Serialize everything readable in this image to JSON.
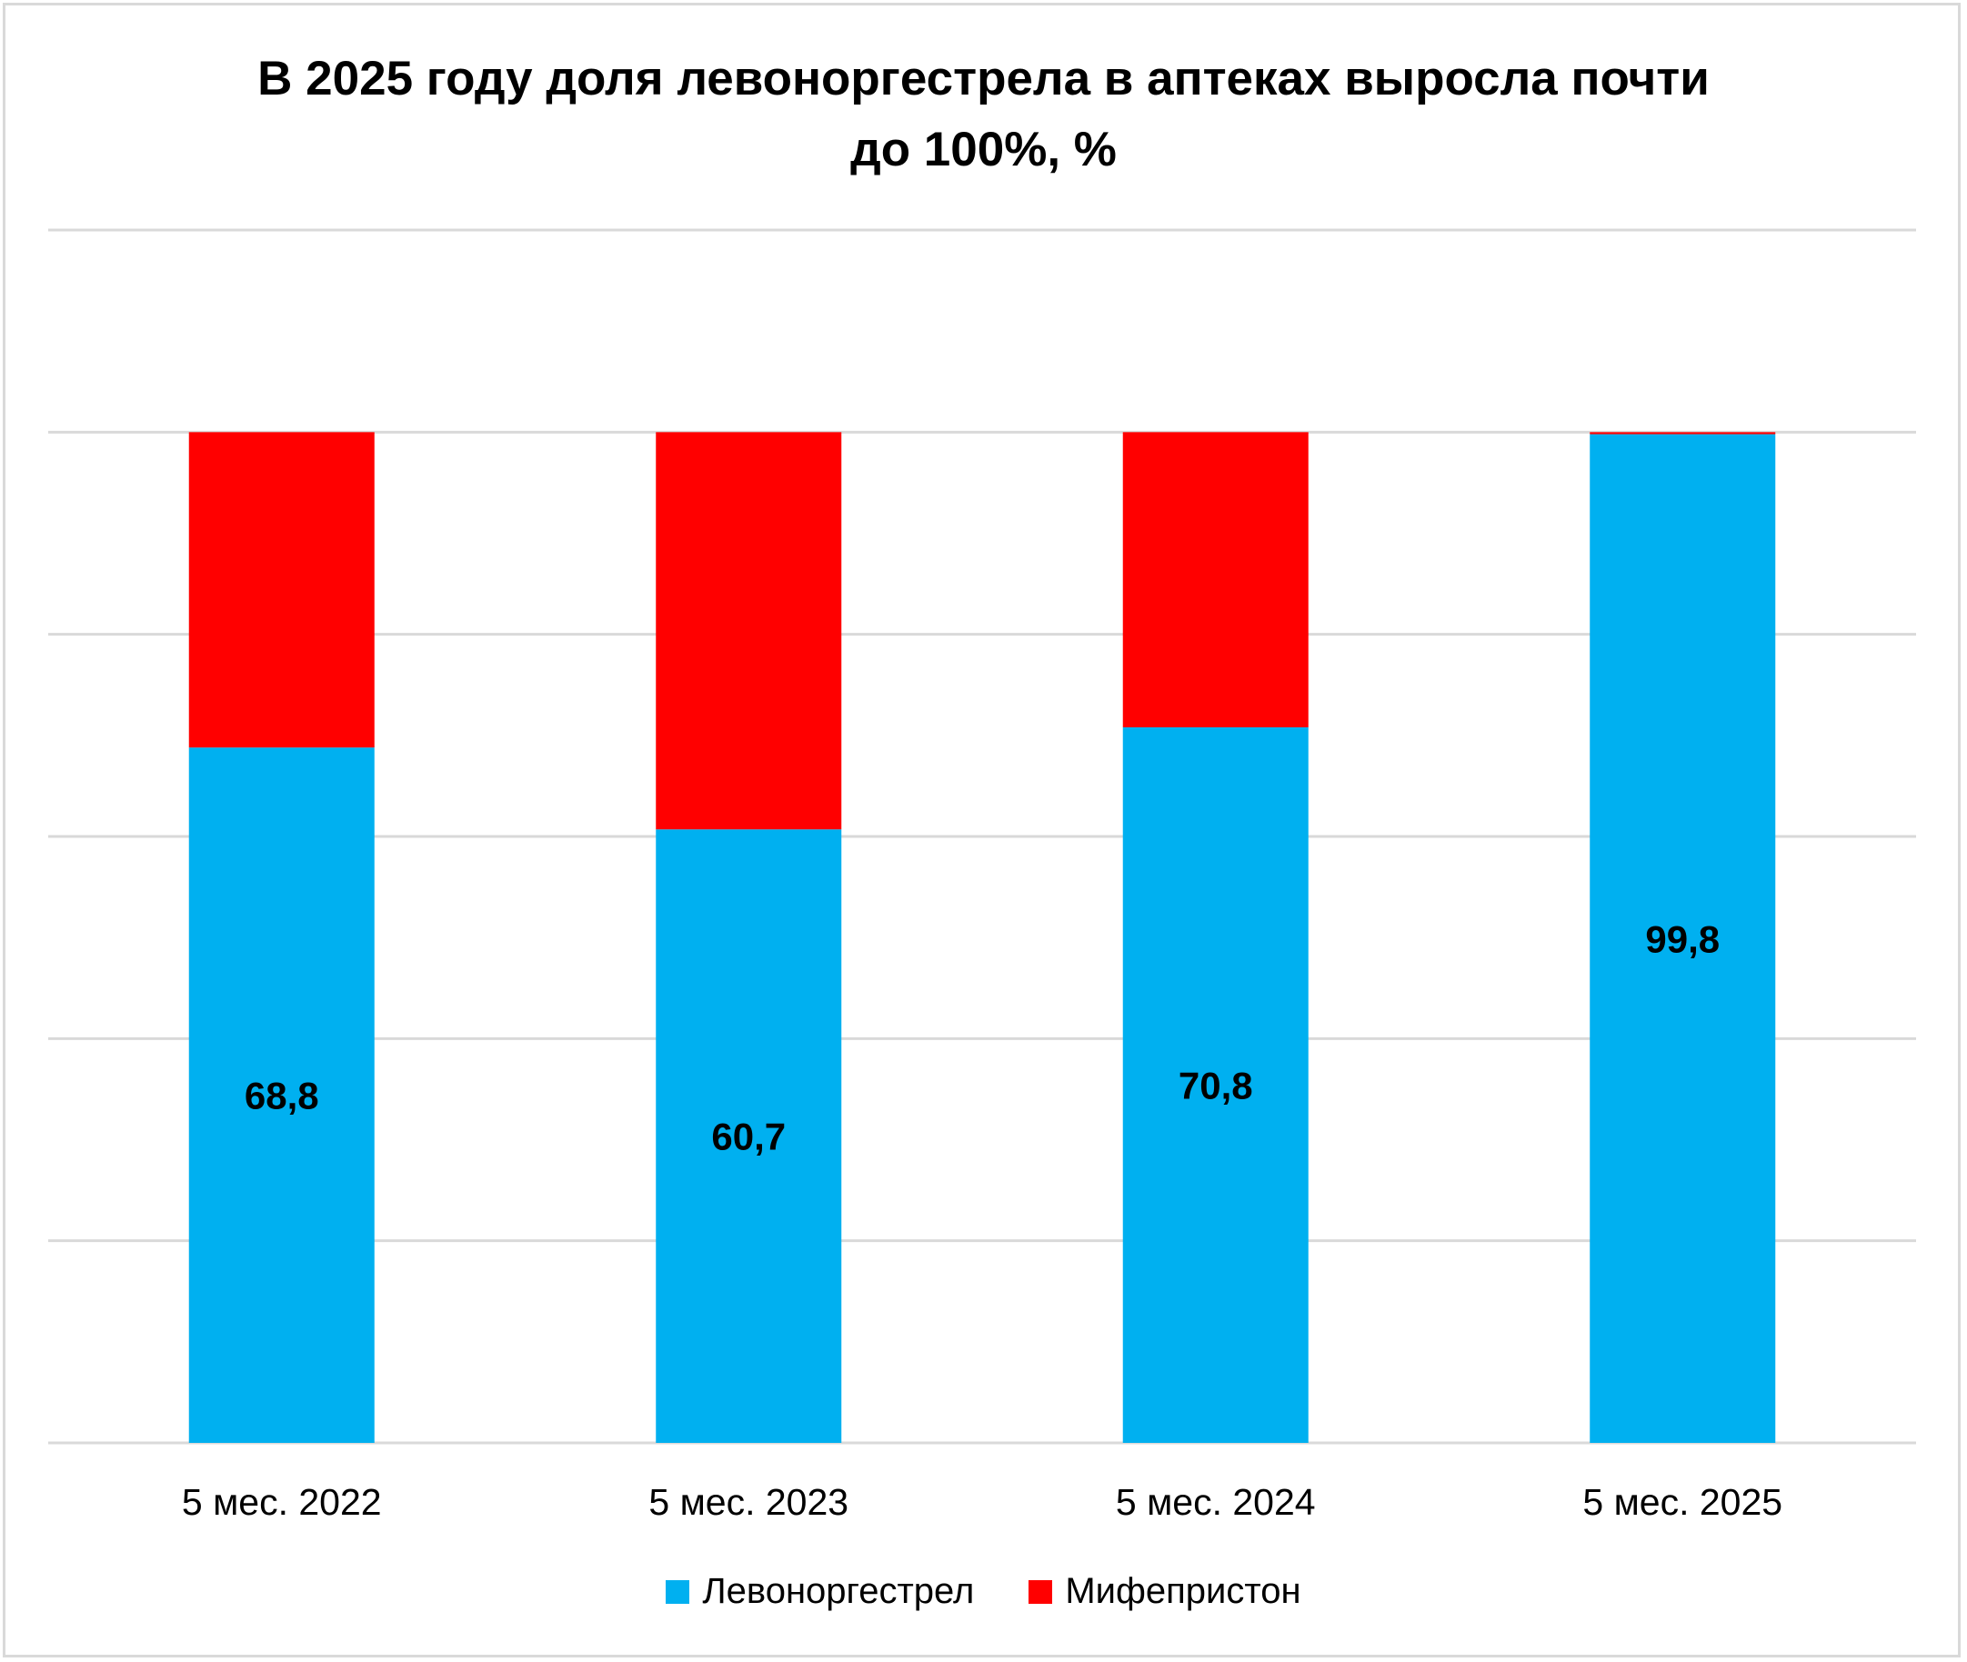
{
  "chart_data": {
    "type": "bar",
    "stacked": true,
    "title": "В 2025 году доля левоноргестрела в аптеках выросла почти до 100%, %",
    "title_lines": [
      "В 2025 году доля левоноргестрела в аптеках выросла почти",
      "до 100%, %"
    ],
    "categories": [
      "5 мес. 2022",
      "5 мес. 2023",
      "5 мес. 2024",
      "5 мес. 2025"
    ],
    "series": [
      {
        "name": "Левоноргестрел",
        "color": "#00b0f0",
        "values": [
          68.8,
          60.7,
          70.8,
          99.8
        ],
        "labels": [
          "68,8",
          "60,7",
          "70,8",
          "99,8"
        ]
      },
      {
        "name": "Мифепристон",
        "color": "#ff0000",
        "values": [
          31.2,
          39.3,
          29.2,
          0.2
        ]
      }
    ],
    "ylim": [
      0,
      120
    ],
    "yticks": [
      0,
      20,
      40,
      60,
      80,
      100,
      120
    ],
    "grid": true,
    "legend": "bottom",
    "xlabel": "",
    "ylabel": ""
  }
}
